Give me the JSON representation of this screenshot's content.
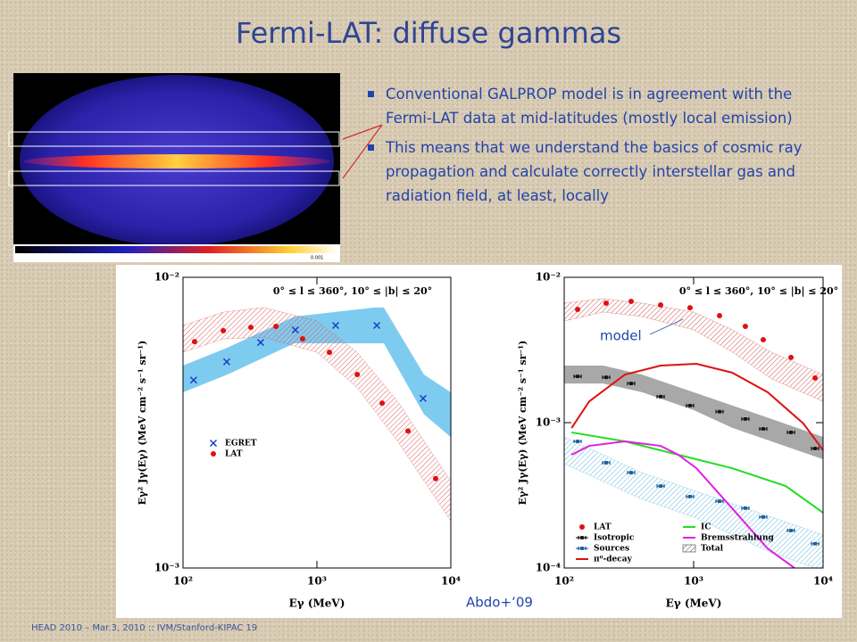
{
  "title": "Fermi-LAT: diffuse gammas",
  "bullets": [
    "Conventional GALPROP model is in agreement with the Fermi-LAT data at mid-latitudes (mostly local emission)",
    "This means that we understand the basics of cosmic ray propagation and calculate correctly interstellar gas and radiation field, at least, locally"
  ],
  "sky_map": {
    "colorbar_label": "0.001"
  },
  "model_note": "model",
  "citation": "Abdo+’09",
  "footer": "HEAD 2010 – Mar.3, 2010 :: IVM/Stanford-KIPAC  19",
  "chart_data": [
    {
      "type": "scatter",
      "log_x": true,
      "log_y": true,
      "xlim": [
        100,
        10000
      ],
      "ylim": [
        0.001,
        0.01
      ],
      "xticks": [
        {
          "value": 100,
          "label": "10²"
        },
        {
          "value": 1000,
          "label": "10³"
        },
        {
          "value": 10000,
          "label": "10⁴"
        }
      ],
      "yticks": [
        {
          "value": 0.001,
          "label": "10⁻³"
        },
        {
          "value": 0.01,
          "label": "10⁻²"
        }
      ],
      "x_label": "Eγ (MeV)",
      "y_label": "Eγ² Jγ(Eγ) (MeV cm⁻² s⁻¹ sr⁻¹)",
      "annotation": "0° ≤ l ≤ 360°, 10° ≤ |b| ≤ 20°",
      "series": [
        {
          "color": "#7ecbf0",
          "marker": "band",
          "hatch": false,
          "x": [
            100,
            215,
            680,
            2700,
            3160,
            6300,
            10000
          ],
          "upper": [
            0.00497,
            0.00573,
            0.00733,
            0.00787,
            0.00787,
            0.00463,
            0.00402
          ],
          "lower": [
            0.00402,
            0.00463,
            0.00593,
            0.00593,
            0.00593,
            0.00338,
            0.00282
          ]
        },
        {
          "color": "#e05a5a",
          "marker": "band",
          "hatch": true,
          "x": [
            100,
            200,
            400,
            1000,
            2000,
            4000,
            10000
          ],
          "upper": [
            0.00683,
            0.00759,
            0.00787,
            0.00708,
            0.00552,
            0.00375,
            0.00199
          ],
          "lower": [
            0.00552,
            0.00614,
            0.00622,
            0.00552,
            0.00417,
            0.00273,
            0.00145
          ]
        },
        {
          "name": "EGRET",
          "color": "#1a3cc8",
          "marker": "x",
          "x": [
            120,
            212,
            380,
            690,
            1380,
            2800,
            6210
          ],
          "values": [
            0.00443,
            0.00512,
            0.00597,
            0.00659,
            0.00683,
            0.00683,
            0.00383
          ]
        },
        {
          "name": "LAT",
          "color": "#e01010",
          "marker": "circle",
          "x": [
            122,
            200,
            321,
            494,
            782,
            1240,
            2000,
            3070,
            4790,
            7700
          ],
          "values": [
            0.00601,
            0.00655,
            0.00673,
            0.00678,
            0.00614,
            0.00552,
            0.00463,
            0.00369,
            0.00296,
            0.00203
          ]
        }
      ]
    },
    {
      "type": "scatter",
      "log_x": true,
      "log_y": true,
      "xlim": [
        100,
        10000
      ],
      "ylim": [
        0.0001,
        0.01
      ],
      "xticks": [
        {
          "value": 100,
          "label": "10²"
        },
        {
          "value": 1000,
          "label": "10³"
        },
        {
          "value": 10000,
          "label": "10⁴"
        }
      ],
      "yticks": [
        {
          "value": 0.0001,
          "label": "10⁻⁴"
        },
        {
          "value": 0.001,
          "label": "10⁻³"
        },
        {
          "value": 0.01,
          "label": "10⁻²"
        }
      ],
      "x_label": "Eγ (MeV)",
      "y_label": "Eγ² Jγ(Eγ) (MeV cm⁻² s⁻¹ sr⁻¹)",
      "annotation": "0° ≤ l ≤ 360°, 10° ≤ |b| ≤ 20°",
      "series": [
        {
          "name": "LAT",
          "color": "#e01010",
          "marker": "circle",
          "x": [
            127,
            211,
            329,
            556,
            938,
            1585,
            2510,
            3450,
            5650,
            8670
          ],
          "values": [
            0.00601,
            0.00664,
            0.00683,
            0.00645,
            0.00618,
            0.00545,
            0.0046,
            0.00372,
            0.00281,
            0.00203
          ]
        },
        {
          "name": "Isotropic",
          "color": "#111111",
          "marker": "errorbar",
          "x": [
            127,
            211,
            329,
            556,
            938,
            1585,
            2510,
            3450,
            5650,
            8670
          ],
          "values": [
            0.00208,
            0.00205,
            0.00186,
            0.00151,
            0.00131,
            0.00119,
            0.00106,
            0.000906,
            0.000857,
            0.000664
          ],
          "band": {
            "color": "#a8a8a8",
            "hatch": false,
            "x": [
              100,
              200,
              400,
              1000,
              2000,
              4000,
              10000
            ],
            "upper": [
              0.00247,
              0.00247,
              0.00214,
              0.00162,
              0.00131,
              0.00106,
              0.000798
            ],
            "lower": [
              0.00186,
              0.00186,
              0.00162,
              0.00122,
              0.000918,
              0.000743,
              0.00056
            ]
          }
        },
        {
          "name": "Sources",
          "color": "#1a5a9a",
          "marker": "errorbar",
          "x": [
            127,
            211,
            329,
            556,
            938,
            1585,
            2510,
            3450,
            5650,
            8670
          ],
          "values": [
            0.000743,
            0.00053,
            0.000453,
            0.000366,
            0.00031,
            0.000288,
            0.000258,
            0.000224,
            0.000181,
            0.000147
          ],
          "band": {
            "color": "#5fb8e0",
            "hatch": true,
            "x": [
              100,
              200,
              400,
              1000,
              2000,
              4000,
              10000
            ],
            "upper": [
              0.000798,
              0.000601,
              0.000453,
              0.000342,
              0.000277,
              0.000224,
              0.000169
            ],
            "lower": [
              0.000522,
              0.000394,
              0.000297,
              0.000224,
              0.000169,
              0.000127,
              9.6e-05
            ]
          }
        },
        {
          "name": "π⁰-decay",
          "color": "#e01010",
          "marker": "line",
          "x": [
            114,
            156,
            294,
            556,
            1050,
            1980,
            3730,
            7050,
            10000
          ],
          "values": [
            0.000918,
            0.0014,
            0.00214,
            0.00247,
            0.00254,
            0.00221,
            0.00162,
            0.000986,
            0.000646
          ]
        },
        {
          "name": "IC",
          "color": "#22dd22",
          "marker": "line",
          "x": [
            114,
            294,
            762,
            1980,
            5160,
            10000
          ],
          "values": [
            0.000857,
            0.000743,
            0.000601,
            0.000486,
            0.000366,
            0.00024
          ]
        },
        {
          "name": "Bremsstrahlung",
          "color": "#e020e0",
          "marker": "line",
          "x": [
            114,
            156,
            294,
            556,
            762,
            1050,
            1980,
            3730,
            6010
          ],
          "values": [
            0.000601,
            0.000692,
            0.000743,
            0.000692,
            0.000601,
            0.000486,
            0.000258,
            0.000136,
            0.0001
          ]
        },
        {
          "name": "Total",
          "color": "#d05050",
          "marker": "band",
          "hatch": true,
          "x": [
            100,
            200,
            400,
            1000,
            2000,
            4000,
            10000
          ],
          "upper": [
            0.00664,
            0.00713,
            0.00664,
            0.00577,
            0.00435,
            0.00305,
            0.00214
          ],
          "lower": [
            0.005,
            0.00577,
            0.00537,
            0.00435,
            0.00305,
            0.002,
            0.0014
          ]
        }
      ]
    }
  ]
}
